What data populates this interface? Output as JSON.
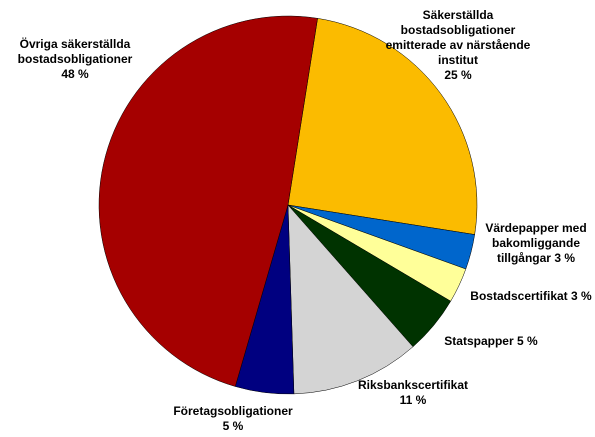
{
  "chart_data": {
    "type": "pie",
    "categories": [
      "Säkerställda bostadsobligationer emitterade av närstående institut",
      "Värdepapper med bakomliggande tillgångar",
      "Bostadscertifikat",
      "Statspapper",
      "Riksbankscertifikat",
      "Företagsobligationer",
      "Övriga säkerställda bostadsobligationer"
    ],
    "values": [
      25,
      3,
      3,
      5,
      11,
      5,
      48
    ],
    "value_labels": [
      "25 %",
      "3 %",
      "3 %",
      "5 %",
      "11 %",
      "5 %",
      "48 %"
    ],
    "colors": [
      "#FBBB00",
      "#0066CC",
      "#FFFF99",
      "#003300",
      "#D4D4D4",
      "#000080",
      "#A50000"
    ]
  }
}
